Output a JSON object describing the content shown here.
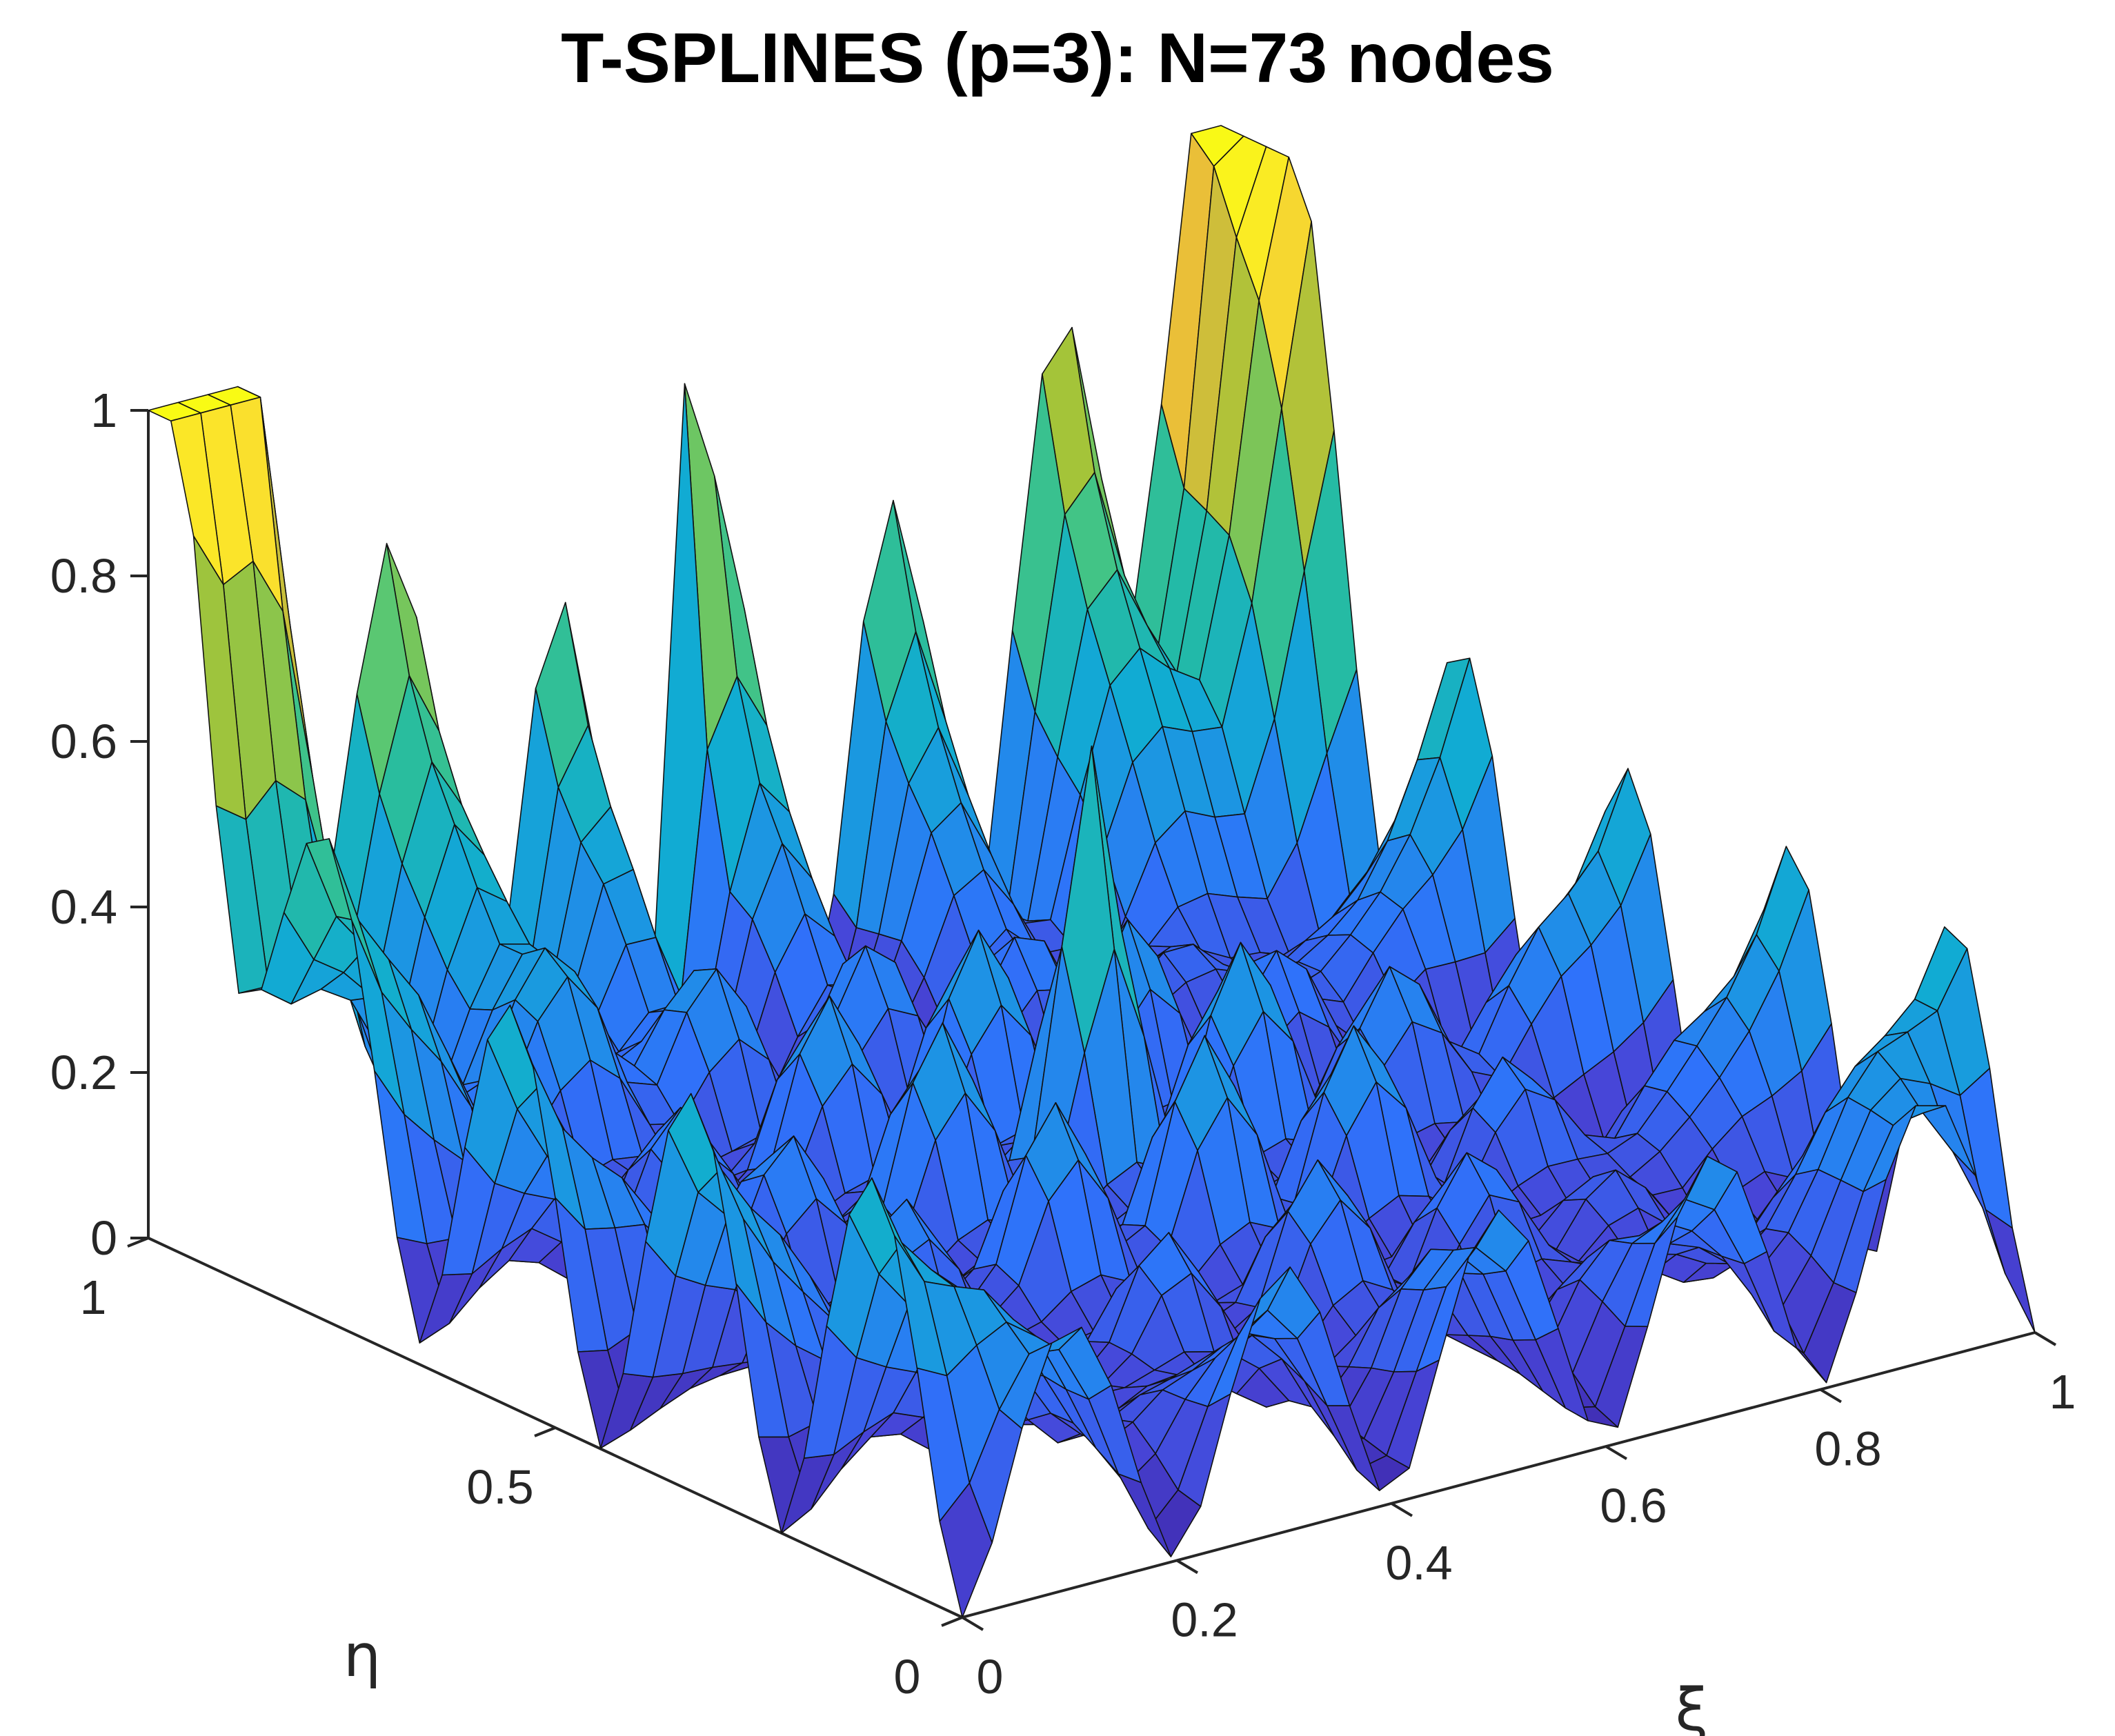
{
  "chart_data": {
    "type": "surface3d",
    "title": "T-SPLINES (p=3): N=73 nodes",
    "xlabel": "ξ",
    "ylabel": "η",
    "zlabel": "",
    "xlim": [
      0,
      1
    ],
    "ylim": [
      0,
      1
    ],
    "zlim": [
      0,
      1
    ],
    "x_ticks": [
      "0",
      "0.2",
      "0.4",
      "0.6",
      "0.8",
      "1"
    ],
    "y_ticks": [
      "0",
      "0.5",
      "1"
    ],
    "z_ticks": [
      "0",
      "0.2",
      "0.4",
      "0.6",
      "0.8",
      "1"
    ],
    "nodes": 73,
    "degree": 3,
    "peaks": [
      {
        "xi": 0,
        "eta": 1,
        "value": 1.0
      },
      {
        "xi": 1,
        "eta": 1,
        "value": 0.88
      },
      {
        "xi": 0.5,
        "eta": 1,
        "value": 1.0
      },
      {
        "xi": 0.5,
        "eta": 0.5,
        "value": 0.52
      }
    ],
    "colormap": [
      "#3e26a8",
      "#4745d7",
      "#2f72fa",
      "#1d93e4",
      "#11acd2",
      "#26bca1",
      "#4fc77a",
      "#a4c439",
      "#e8ba3a",
      "#fbe22c",
      "#f9fb14"
    ]
  }
}
